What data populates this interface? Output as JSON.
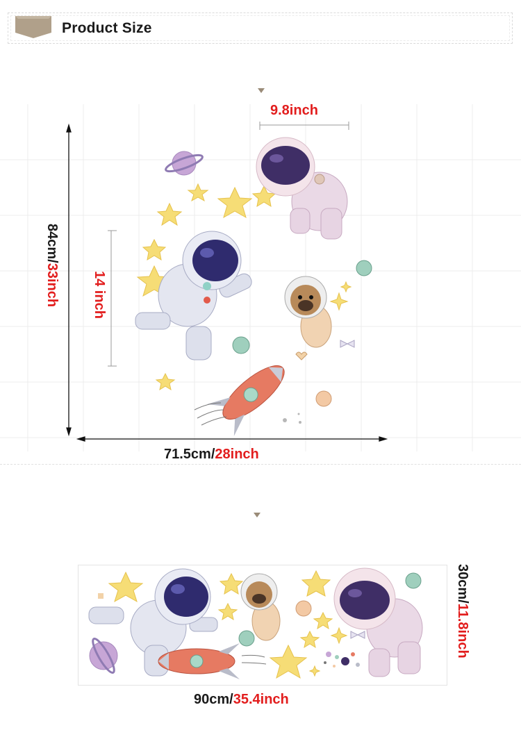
{
  "header": {
    "title": "Product Size",
    "badge_icon": "ribbon-banner-icon",
    "badge_color": "#b0a08a"
  },
  "section1": {
    "width_label_metric": "71.5cm/",
    "width_label_imperial": "28inch",
    "height_label_metric": "84cm/",
    "height_label_imperial": "33inch",
    "astronaut_height_label": "14 inch",
    "pink_astronaut_width_label": "9.8inch"
  },
  "section2": {
    "width_label_metric": "90cm/",
    "width_label_imperial": "35.4inch",
    "height_label_metric": "30cm/",
    "height_label_imperial": "11.8inch"
  },
  "colors": {
    "accent_red": "#e21d1d",
    "text_dark": "#1a1a1a",
    "grid": "#ececec",
    "marker": "#9a8b78"
  },
  "illustrations": [
    "astronaut-blue-icon",
    "astronaut-pink-icon",
    "pug-astronaut-icon",
    "rocket-icon",
    "planet-icon",
    "star-icon"
  ]
}
